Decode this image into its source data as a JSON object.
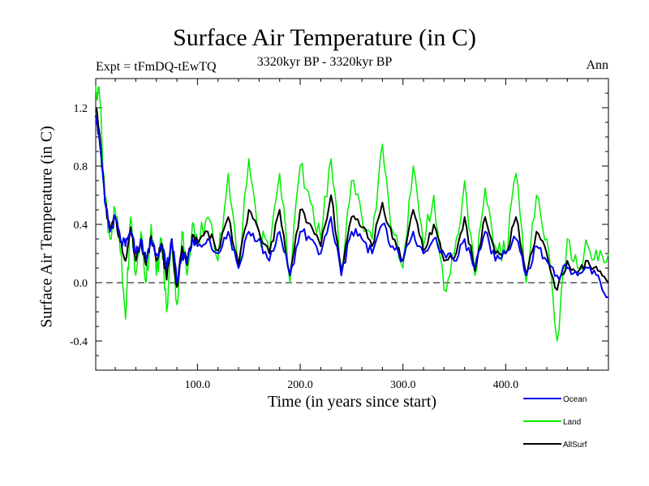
{
  "chart_data": {
    "type": "line",
    "title": "Surface Air Temperature (in C)",
    "subtitle_left": "Expt = tFmDQ-tEwTQ",
    "subtitle_center": "3320kyr BP - 3320kyr BP",
    "subtitle_right": "Ann",
    "xlabel": "Time (in years since start)",
    "ylabel": "Surface Air Temperature (in C)",
    "xlim": [
      1,
      500
    ],
    "ylim": [
      -0.6,
      1.4
    ],
    "xticks": [
      100,
      200,
      300,
      400
    ],
    "xtick_labels": [
      "100.0",
      "200.0",
      "300.0",
      "400.0"
    ],
    "yticks": [
      -0.4,
      0.0,
      0.4,
      0.8,
      1.2
    ],
    "ytick_labels": [
      "-0.4",
      "0.0",
      "0.4",
      "0.8",
      "1.2"
    ],
    "reference_line": 0.0,
    "series": [
      {
        "name": "Ocean",
        "color": "#0000ee",
        "x": [
          1,
          5,
          10,
          15,
          20,
          25,
          30,
          35,
          40,
          45,
          50,
          55,
          60,
          65,
          70,
          75,
          80,
          85,
          90,
          95,
          100,
          110,
          120,
          130,
          140,
          150,
          160,
          170,
          180,
          190,
          200,
          210,
          220,
          230,
          240,
          250,
          260,
          270,
          280,
          290,
          300,
          310,
          320,
          330,
          340,
          350,
          360,
          370,
          380,
          390,
          400,
          410,
          420,
          430,
          440,
          450,
          460,
          470,
          480,
          490,
          500
        ],
        "values": [
          1.15,
          0.95,
          0.55,
          0.35,
          0.45,
          0.3,
          0.25,
          0.35,
          0.2,
          0.3,
          0.15,
          0.3,
          0.2,
          0.25,
          0.1,
          0.3,
          0.0,
          0.2,
          0.15,
          0.3,
          0.25,
          0.3,
          0.2,
          0.35,
          0.1,
          0.35,
          0.3,
          0.15,
          0.35,
          0.05,
          0.35,
          0.3,
          0.2,
          0.45,
          0.05,
          0.35,
          0.3,
          0.2,
          0.4,
          0.25,
          0.15,
          0.35,
          0.2,
          0.3,
          0.2,
          0.15,
          0.3,
          0.1,
          0.35,
          0.15,
          0.2,
          0.3,
          0.05,
          0.25,
          0.15,
          0.05,
          0.1,
          0.05,
          0.1,
          0.05,
          -0.1
        ]
      },
      {
        "name": "Land",
        "color": "#00ee00",
        "x": [
          1,
          5,
          10,
          15,
          20,
          25,
          30,
          35,
          40,
          45,
          50,
          55,
          60,
          65,
          70,
          75,
          80,
          85,
          90,
          95,
          100,
          110,
          120,
          130,
          140,
          150,
          160,
          170,
          180,
          190,
          200,
          210,
          220,
          230,
          240,
          250,
          260,
          270,
          280,
          290,
          300,
          310,
          320,
          330,
          340,
          350,
          360,
          370,
          380,
          390,
          400,
          410,
          420,
          430,
          440,
          450,
          460,
          470,
          480,
          490,
          500
        ],
        "values": [
          1.35,
          1.25,
          0.6,
          0.3,
          0.5,
          0.2,
          -0.25,
          0.45,
          0.05,
          0.35,
          0.0,
          0.4,
          0.05,
          0.3,
          -0.2,
          0.3,
          -0.15,
          0.35,
          0.05,
          0.4,
          0.3,
          0.45,
          0.15,
          0.75,
          0.1,
          0.85,
          0.35,
          0.2,
          0.75,
          0.0,
          0.8,
          0.55,
          0.3,
          0.85,
          0.1,
          0.7,
          0.45,
          0.3,
          0.95,
          0.35,
          0.1,
          0.8,
          0.25,
          0.6,
          -0.05,
          0.2,
          0.7,
          0.05,
          0.65,
          0.25,
          0.2,
          0.75,
          0.0,
          0.6,
          0.3,
          -0.4,
          0.3,
          0.1,
          0.25,
          0.15,
          0.2
        ]
      },
      {
        "name": "AllSurf",
        "color": "#000000",
        "x": [
          1,
          5,
          10,
          15,
          20,
          25,
          30,
          35,
          40,
          45,
          50,
          55,
          60,
          65,
          70,
          75,
          80,
          85,
          90,
          95,
          100,
          110,
          120,
          130,
          140,
          150,
          160,
          170,
          180,
          190,
          200,
          210,
          220,
          230,
          240,
          250,
          260,
          270,
          280,
          290,
          300,
          310,
          320,
          330,
          340,
          350,
          360,
          370,
          380,
          390,
          400,
          410,
          420,
          430,
          440,
          450,
          460,
          470,
          480,
          490,
          500
        ],
        "values": [
          1.2,
          1.0,
          0.55,
          0.35,
          0.45,
          0.28,
          0.15,
          0.38,
          0.15,
          0.3,
          0.12,
          0.32,
          0.15,
          0.27,
          0.02,
          0.3,
          -0.03,
          0.25,
          0.12,
          0.33,
          0.27,
          0.35,
          0.22,
          0.45,
          0.12,
          0.5,
          0.35,
          0.2,
          0.5,
          0.05,
          0.5,
          0.4,
          0.25,
          0.6,
          0.08,
          0.45,
          0.38,
          0.25,
          0.55,
          0.3,
          0.15,
          0.5,
          0.22,
          0.4,
          0.15,
          0.17,
          0.45,
          0.08,
          0.45,
          0.2,
          0.2,
          0.45,
          0.05,
          0.35,
          0.2,
          -0.05,
          0.15,
          0.07,
          0.15,
          0.08,
          0.0
        ]
      }
    ],
    "legend_position": "bottom-right"
  }
}
